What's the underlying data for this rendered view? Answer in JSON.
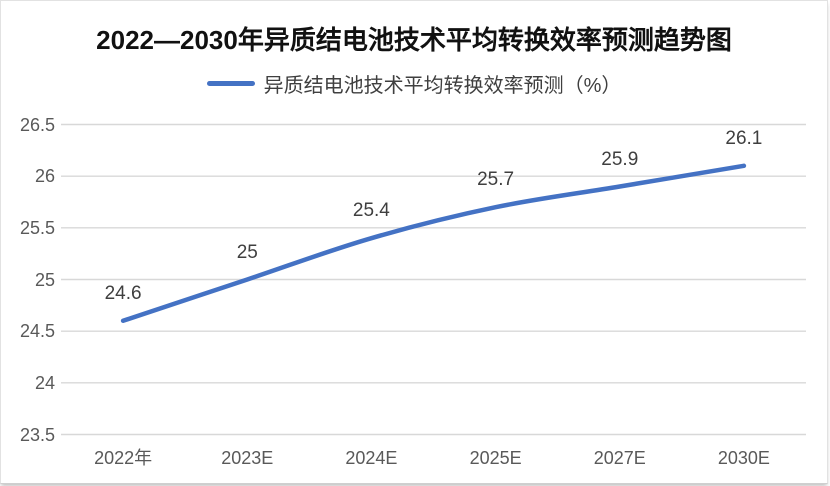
{
  "chart": {
    "title": "2022—2030年异质结电池技术平均转换效率预测趋势图",
    "legend_label": "异质结电池技术平均转换效率预测（%）"
  },
  "chart_data": {
    "type": "line",
    "title": "2022—2030年异质结电池技术平均转换效率预测趋势图",
    "categories": [
      "2022年",
      "2023E",
      "2024E",
      "2025E",
      "2027E",
      "2030E"
    ],
    "series": [
      {
        "name": "异质结电池技术平均转换效率预测（%）",
        "values": [
          24.6,
          25,
          25.4,
          25.7,
          25.9,
          26.1
        ],
        "color": "#4472C4"
      }
    ],
    "data_labels": [
      "24.6",
      "25",
      "25.4",
      "25.7",
      "25.9",
      "26.1"
    ],
    "xlabel": "",
    "ylabel": "",
    "ylim": [
      23.5,
      26.5
    ],
    "ytick_step": 0.5,
    "ytick_labels": [
      "23.5",
      "24",
      "24.5",
      "25",
      "25.5",
      "26",
      "26.5"
    ],
    "grid": true,
    "legend_position": "top",
    "smooth_line": true,
    "colors": {
      "line": "#4472C4",
      "gridline": "#D8D8D8",
      "axis_text": "#595959",
      "data_label_text": "#3f3f3f",
      "title_text": "#111111"
    }
  }
}
